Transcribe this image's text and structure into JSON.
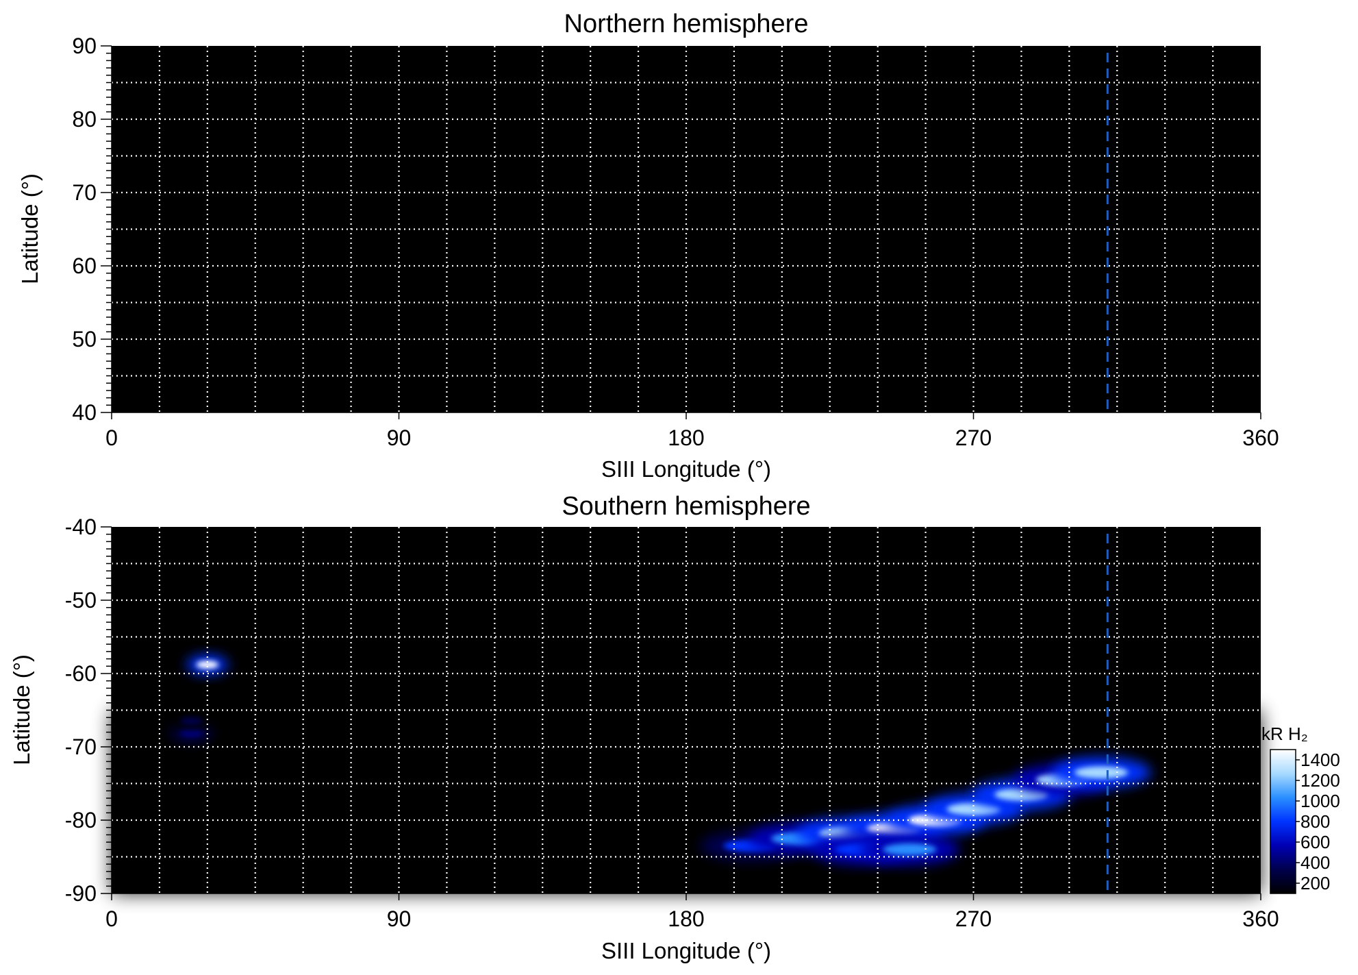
{
  "chart_data": [
    {
      "type": "heatmap",
      "title": "Northern hemisphere",
      "xlabel": "SIII Longitude (°)",
      "ylabel": "Latitude (°)",
      "xlim": [
        0,
        360
      ],
      "ylim": [
        40,
        90
      ],
      "xticks": [
        0,
        90,
        180,
        270,
        360
      ],
      "yticks": [
        40,
        50,
        60,
        70,
        80,
        90
      ],
      "grid": true,
      "grid_x_step": 15,
      "grid_y_step": 5,
      "grid_color": "#ffffff",
      "background_color": "#000000",
      "reference_line": {
        "longitude": 312,
        "style": "dashed",
        "color": "#1f5fbf"
      },
      "emission": []
    },
    {
      "type": "heatmap",
      "title": "Southern hemisphere",
      "xlabel": "SIII Longitude (°)",
      "ylabel": "Latitude (°)",
      "xlim": [
        0,
        360
      ],
      "ylim": [
        -90,
        -40
      ],
      "xticks": [
        0,
        90,
        180,
        270,
        360
      ],
      "yticks": [
        -40,
        -50,
        -60,
        -70,
        -80,
        -90
      ],
      "grid": true,
      "grid_x_step": 15,
      "grid_y_step": 5,
      "grid_color": "#ffffff",
      "background_color": "#000000",
      "reference_line": {
        "longitude": 312,
        "style": "dashed",
        "color": "#1f5fbf"
      },
      "emission": [
        {
          "feature": "background-band",
          "lon": [
            0,
            360
          ],
          "lat": [
            -90,
            -65
          ],
          "intensity": 120
        },
        {
          "feature": "spot",
          "lon": 30,
          "lat": -58.8,
          "intensity": 1450
        },
        {
          "feature": "spot",
          "lon": 25,
          "lat": -68,
          "intensity": 450
        },
        {
          "feature": "spot",
          "lon": 25,
          "lat": -66.5,
          "intensity": 350
        },
        {
          "feature": "arc",
          "lon": 200,
          "lat": -83.5,
          "intensity": 700
        },
        {
          "feature": "arc",
          "lon": 215,
          "lat": -82.5,
          "intensity": 950
        },
        {
          "feature": "arc",
          "lon": 230,
          "lat": -81.8,
          "intensity": 1250
        },
        {
          "feature": "arc",
          "lon": 245,
          "lat": -81.2,
          "intensity": 1450
        },
        {
          "feature": "arc",
          "lon": 258,
          "lat": -80,
          "intensity": 1450
        },
        {
          "feature": "arc",
          "lon": 270,
          "lat": -78.5,
          "intensity": 1350
        },
        {
          "feature": "arc",
          "lon": 285,
          "lat": -76.5,
          "intensity": 1250
        },
        {
          "feature": "arc",
          "lon": 298,
          "lat": -74.5,
          "intensity": 1150
        },
        {
          "feature": "arc",
          "lon": 310,
          "lat": -73.5,
          "intensity": 1300
        },
        {
          "feature": "arc",
          "lon": 235,
          "lat": -84,
          "intensity": 900
        },
        {
          "feature": "arc",
          "lon": 250,
          "lat": -84,
          "intensity": 950
        }
      ],
      "colorbar": {
        "label": "kR H₂",
        "range": [
          100,
          1500
        ],
        "ticks": [
          1400,
          1200,
          1000,
          800,
          600,
          400,
          200
        ],
        "colors": [
          "#000000",
          "#00004d",
          "#0000b3",
          "#0033ff",
          "#2a8fff",
          "#a8daff",
          "#ffffff"
        ]
      }
    }
  ]
}
